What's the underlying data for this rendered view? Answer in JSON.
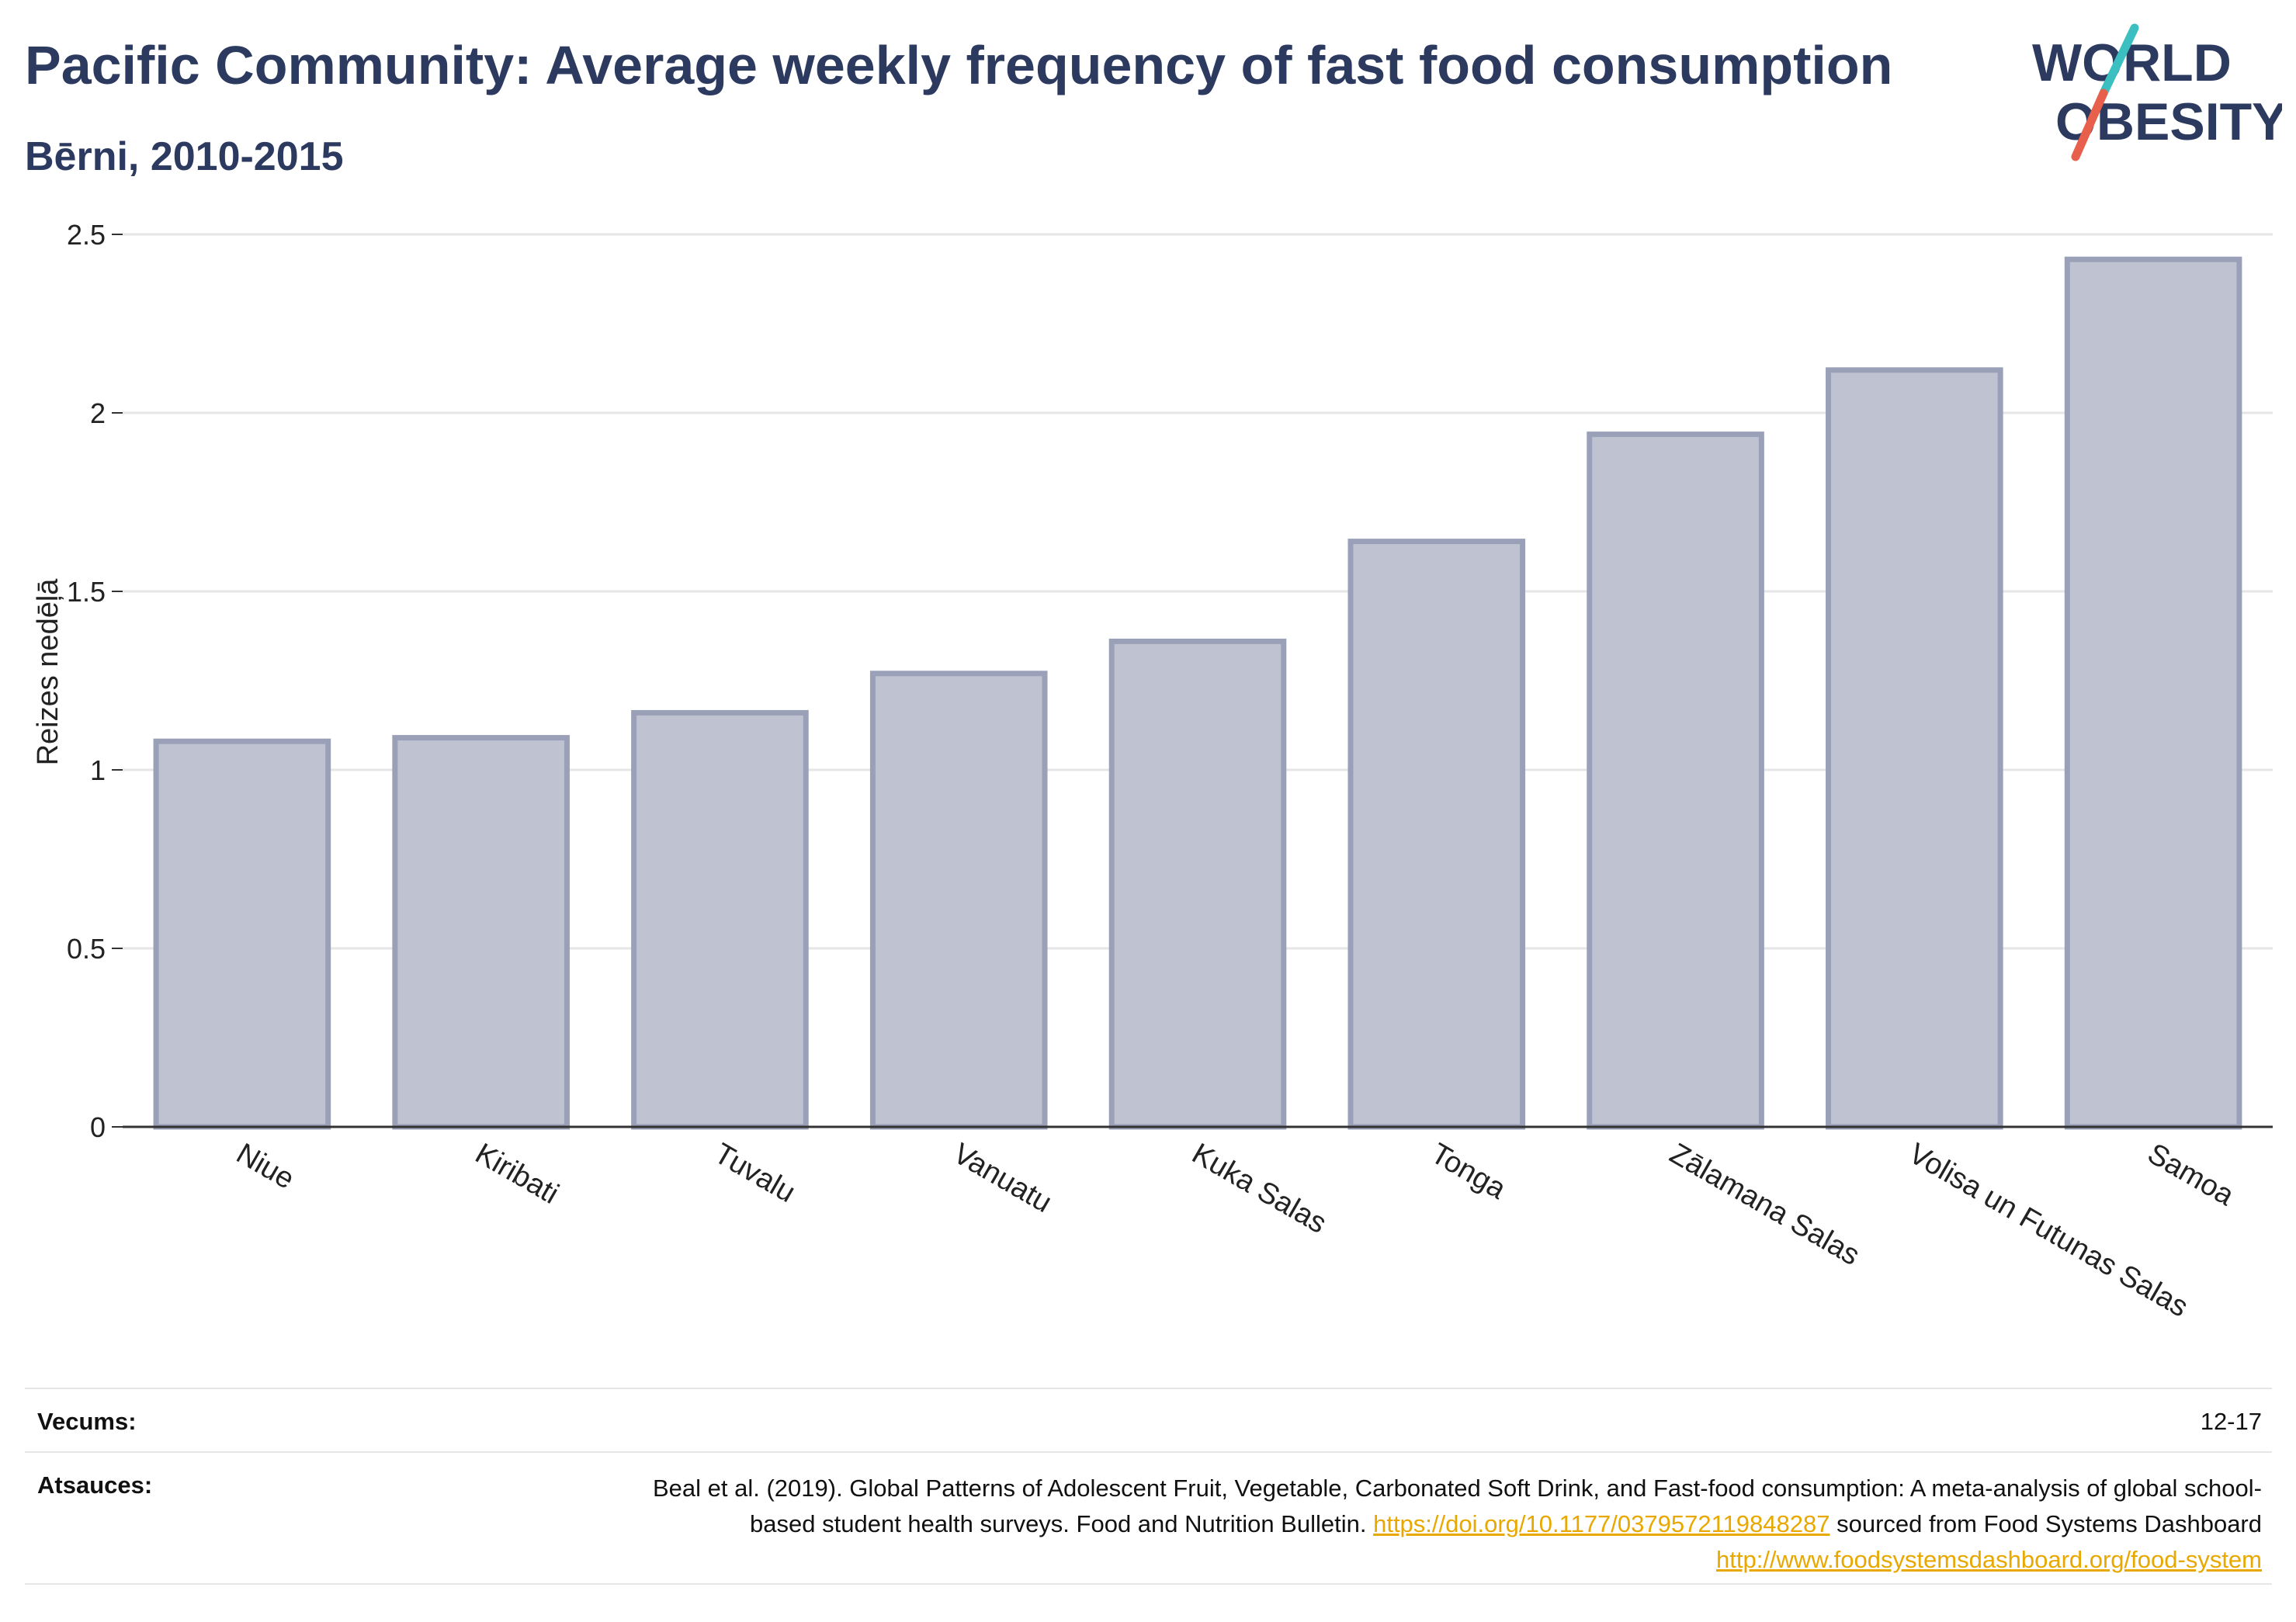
{
  "header": {
    "title": "Pacific Community: Average weekly frequency of fast food consumption",
    "subtitle": "Bērni, 2010-2015"
  },
  "logo": {
    "text_top": "WORLD",
    "text_bottom": "OBESITY",
    "colors": {
      "text": "#2d3a60",
      "slash_top": "#3bbfc0",
      "slash_bottom": "#e8604c"
    }
  },
  "colors": {
    "bar_fill": "#bfc3d1",
    "bar_stroke": "#9aa0b8",
    "heading": "#2d3a60",
    "link": "#e8a800",
    "grid": "#e6e6e6"
  },
  "chart_data": {
    "type": "bar",
    "title": "Pacific Community: Average weekly frequency of fast food consumption",
    "subtitle": "Bērni, 2010-2015",
    "xlabel": "",
    "ylabel": "Reizes nedēļā",
    "categories": [
      "Niue",
      "Kiribati",
      "Tuvalu",
      "Vanuatu",
      "Kuka Salas",
      "Tonga",
      "Zālamana Salas",
      "Volisa un Futunas Salas",
      "Samoa"
    ],
    "values": [
      1.08,
      1.09,
      1.16,
      1.27,
      1.36,
      1.64,
      1.94,
      2.12,
      2.43
    ],
    "ylim": [
      0,
      2.5
    ],
    "yticks": [
      0,
      0.5,
      1,
      1.5,
      2,
      2.5
    ],
    "ytick_labels": [
      "0",
      "0.5",
      "1",
      "1.5",
      "2",
      "2.5"
    ],
    "grid": true,
    "legend": "none"
  },
  "footer": {
    "age_label": "Vecums:",
    "age_value": "12-17",
    "sources_label": "Atsauces:",
    "source_text_1": "Beal et al. (2019). Global Patterns of Adolescent Fruit, Vegetable, Carbonated Soft Drink, and Fast-food consumption: A meta-analysis of global school-based student health surveys. Food and Nutrition Bulletin.",
    "source_link_1": "https://doi.org/10.1177/0379572119848287",
    "source_text_2": "sourced from Food Systems Dashboard",
    "source_link_2": "http://www.foodsystemsdashboard.org/food-system"
  }
}
